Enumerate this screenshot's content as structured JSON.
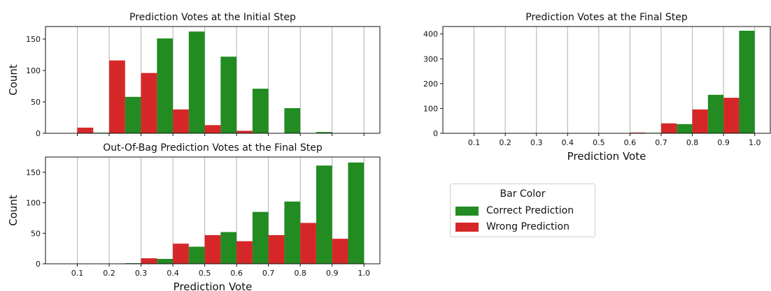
{
  "colors": {
    "correct": "#228b22",
    "wrong": "#d62728",
    "grid": "#b0b0b0"
  },
  "legend": {
    "title": "Bar Color",
    "items": [
      {
        "label": "Correct Prediction",
        "color": "#228b22"
      },
      {
        "label": "Wrong Prediction",
        "color": "#d62728"
      }
    ]
  },
  "chart_data": [
    {
      "id": "initial",
      "type": "bar",
      "title": "Prediction Votes at the Initial Step",
      "xlabel": "",
      "ylabel": "Count",
      "xlim": [
        0.0,
        1.05
      ],
      "ylim": [
        0,
        170
      ],
      "yticks": [
        0,
        50,
        100,
        150
      ],
      "xticks": [
        0.1,
        0.2,
        0.3,
        0.4,
        0.5,
        0.6,
        0.7,
        0.8,
        0.9,
        1.0
      ],
      "show_xtick_labels": false,
      "grid": "x",
      "bins": [
        [
          0.0,
          0.05
        ],
        [
          0.05,
          0.1
        ],
        [
          0.1,
          0.15
        ],
        [
          0.15,
          0.2
        ],
        [
          0.2,
          0.25
        ],
        [
          0.25,
          0.3
        ],
        [
          0.3,
          0.35
        ],
        [
          0.35,
          0.4
        ],
        [
          0.4,
          0.45
        ],
        [
          0.45,
          0.5
        ],
        [
          0.5,
          0.55
        ],
        [
          0.55,
          0.6
        ],
        [
          0.6,
          0.65
        ],
        [
          0.65,
          0.7
        ],
        [
          0.7,
          0.75
        ],
        [
          0.75,
          0.8
        ],
        [
          0.8,
          0.85
        ],
        [
          0.85,
          0.9
        ],
        [
          0.9,
          0.95
        ],
        [
          0.95,
          1.0
        ]
      ],
      "series": [
        {
          "name": "Correct Prediction",
          "values": [
            0,
            0,
            0,
            1,
            0,
            58,
            0,
            151,
            0,
            162,
            0,
            122,
            0,
            71,
            0,
            40,
            0,
            2,
            0,
            0
          ]
        },
        {
          "name": "Wrong Prediction",
          "values": [
            0,
            0,
            9,
            0,
            116,
            0,
            96,
            0,
            38,
            0,
            13,
            0,
            4,
            0,
            0,
            0,
            0,
            0,
            0,
            0
          ]
        }
      ]
    },
    {
      "id": "final",
      "type": "bar",
      "title": "Prediction Votes at the Final Step",
      "xlabel": "Prediction Vote",
      "ylabel": "",
      "xlim": [
        0.0,
        1.05
      ],
      "ylim": [
        0,
        430
      ],
      "yticks": [
        0,
        100,
        200,
        300,
        400
      ],
      "xticks": [
        0.1,
        0.2,
        0.3,
        0.4,
        0.5,
        0.6,
        0.7,
        0.8,
        0.9,
        1.0
      ],
      "show_xtick_labels": true,
      "grid": "x",
      "bins": [
        [
          0.6,
          0.65
        ],
        [
          0.65,
          0.7
        ],
        [
          0.7,
          0.75
        ],
        [
          0.75,
          0.8
        ],
        [
          0.8,
          0.85
        ],
        [
          0.85,
          0.9
        ],
        [
          0.9,
          0.95
        ],
        [
          0.95,
          1.0
        ]
      ],
      "series": [
        {
          "name": "Correct Prediction",
          "values": [
            0,
            2,
            0,
            37,
            0,
            155,
            0,
            413
          ]
        },
        {
          "name": "Wrong Prediction",
          "values": [
            3,
            0,
            40,
            0,
            96,
            0,
            143,
            0
          ]
        }
      ]
    },
    {
      "id": "oob",
      "type": "bar",
      "title": "Out-Of-Bag Prediction Votes at the Final Step",
      "xlabel": "Prediction Vote",
      "ylabel": "Count",
      "xlim": [
        0.0,
        1.05
      ],
      "ylim": [
        0,
        175
      ],
      "yticks": [
        0,
        50,
        100,
        150
      ],
      "xticks": [
        0.1,
        0.2,
        0.3,
        0.4,
        0.5,
        0.6,
        0.7,
        0.8,
        0.9,
        1.0
      ],
      "show_xtick_labels": true,
      "grid": "x",
      "bins": [
        [
          0.0,
          0.05
        ],
        [
          0.05,
          0.1
        ],
        [
          0.1,
          0.15
        ],
        [
          0.15,
          0.2
        ],
        [
          0.2,
          0.25
        ],
        [
          0.25,
          0.3
        ],
        [
          0.3,
          0.35
        ],
        [
          0.35,
          0.4
        ],
        [
          0.4,
          0.45
        ],
        [
          0.45,
          0.5
        ],
        [
          0.5,
          0.55
        ],
        [
          0.55,
          0.6
        ],
        [
          0.6,
          0.65
        ],
        [
          0.65,
          0.7
        ],
        [
          0.7,
          0.75
        ],
        [
          0.75,
          0.8
        ],
        [
          0.8,
          0.85
        ],
        [
          0.85,
          0.9
        ],
        [
          0.9,
          0.95
        ],
        [
          0.95,
          1.0
        ]
      ],
      "series": [
        {
          "name": "Correct Prediction",
          "values": [
            0,
            0,
            0,
            0,
            0,
            1,
            0,
            8,
            0,
            28,
            0,
            52,
            0,
            85,
            0,
            102,
            0,
            161,
            0,
            166
          ]
        },
        {
          "name": "Wrong Prediction",
          "values": [
            0,
            0,
            0,
            0,
            0,
            0,
            9,
            0,
            33,
            0,
            47,
            0,
            37,
            0,
            47,
            0,
            67,
            0,
            41,
            0
          ]
        }
      ]
    }
  ]
}
